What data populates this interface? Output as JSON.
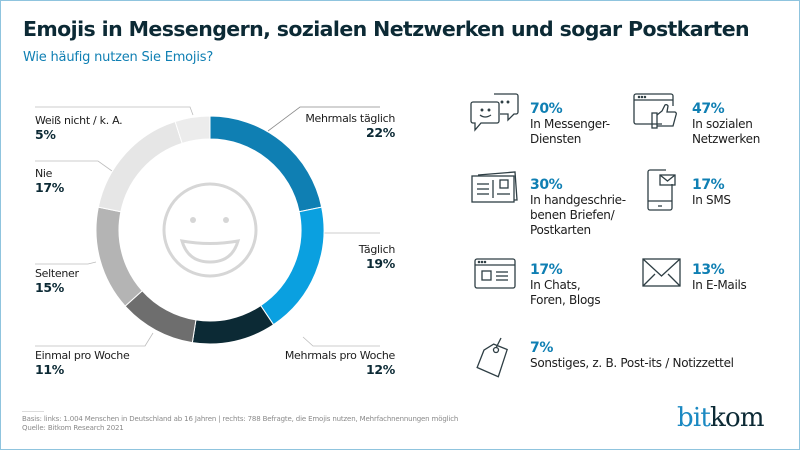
{
  "header": {
    "title": "Emojis in Messengern, sozialen Netzwerken und sogar Postkarten",
    "subtitle": "Wie häufig nutzen Sie Emojis?"
  },
  "chart_data": {
    "type": "pie",
    "variant": "donut",
    "title": "Wie häufig nutzen Sie Emojis?",
    "center_icon": "smiley-face-icon",
    "unit": "%",
    "segments": [
      {
        "label": "Mehrmals täglich",
        "value": 22,
        "value_label": "22%",
        "color": "#0f7fb3"
      },
      {
        "label": "Täglich",
        "value": 19,
        "value_label": "19%",
        "color": "#0aa0e0"
      },
      {
        "label": "Mehrmals pro Woche",
        "value": 12,
        "value_label": "12%",
        "color": "#0c2a35"
      },
      {
        "label": "Einmal pro Woche",
        "value": 11,
        "value_label": "11%",
        "color": "#6e6e6e"
      },
      {
        "label": "Seltener",
        "value": 15,
        "value_label": "15%",
        "color": "#b4b4b4"
      },
      {
        "label": "Nie",
        "value": 17,
        "value_label": "17%",
        "color": "#e6e6e6"
      },
      {
        "label": "Weiß nicht / k. A.",
        "value": 5,
        "value_label": "5%",
        "color": "#ececec"
      }
    ]
  },
  "usage_stats": [
    {
      "icon": "chat-bubbles-icon",
      "percent": "70%",
      "text": [
        "In Messenger-",
        "Diensten"
      ]
    },
    {
      "icon": "social-like-icon",
      "percent": "47%",
      "text": [
        "In sozialen",
        "Netzwerken"
      ]
    },
    {
      "icon": "postcard-icon",
      "percent": "30%",
      "text": [
        "In handgeschrie-",
        "benen Briefen/",
        "Postkarten"
      ]
    },
    {
      "icon": "smartphone-sms-icon",
      "percent": "17%",
      "text": [
        "In SMS"
      ]
    },
    {
      "icon": "browser-window-icon",
      "percent": "17%",
      "text": [
        "In Chats,",
        "Foren, Blogs"
      ]
    },
    {
      "icon": "envelope-icon",
      "percent": "13%",
      "text": [
        "In E-Mails"
      ]
    },
    {
      "icon": "price-tag-icon",
      "percent": "7%",
      "text": [
        "Sonstiges, z. B. Post-its / Notizzettel"
      ]
    }
  ],
  "footer": {
    "basis": "Basis: links: 1.004 Menschen in Deutschland ab 16 Jahren | rechts: 788 Befragte, die Emojis nutzen, Mehrfachnennungen möglich",
    "source": "Quelle: Bitkom Research 2021"
  },
  "logo": {
    "part1": "bit",
    "part2": "kom"
  },
  "colors": {
    "accent": "#0f7fb3",
    "dark": "#0c2a35",
    "frame": "#8fc4de"
  }
}
